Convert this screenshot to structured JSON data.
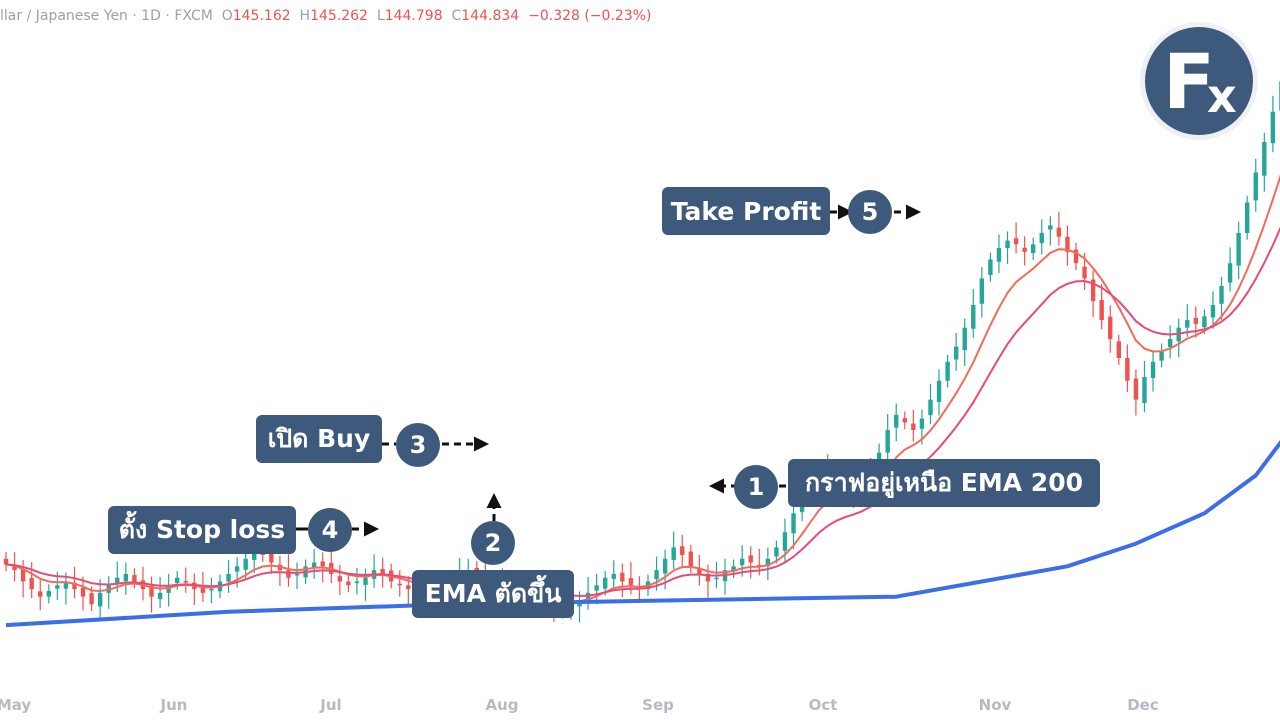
{
  "header": {
    "symbol": "llar / Japanese Yen · 1D · FXCM",
    "o_key": "O",
    "o_val": "145.162",
    "h_key": "H",
    "h_val": "145.262",
    "l_key": "L",
    "l_val": "144.798",
    "c_key": "C",
    "c_val": "144.834",
    "change": "−0.328 (−0.23%)"
  },
  "logo": {
    "letter_f": "F",
    "letter_x": "x"
  },
  "annotations": {
    "step1": {
      "num": "1",
      "text": "กราฟอยู่เหนือ EMA 200"
    },
    "step2": {
      "num": "2",
      "text": "EMA ตัดขึ้น"
    },
    "step3": {
      "num": "3",
      "text": "เปิด Buy"
    },
    "step4": {
      "num": "4",
      "text": "ตั้ง Stop loss"
    },
    "step5": {
      "num": "5",
      "text": "Take Profit"
    }
  },
  "colors": {
    "up": "#26a69a",
    "down": "#ef5350",
    "ema_fast": "#f26b5b",
    "ema_slow": "#e84b7a",
    "ema_200": "#3b6ee8",
    "annotation": "#3d5a7c"
  },
  "chart_data": {
    "type": "candlestick",
    "x_ticks": [
      "May",
      "Jun",
      "Jul",
      "Aug",
      "Sep",
      "Oct",
      "Nov",
      "Dec"
    ],
    "ylim": [
      138,
      152
    ],
    "series": [
      {
        "name": "",
        "kind": "candles",
        "close": [
          141.05,
          140.9,
          140.6,
          140.4,
          140.2,
          140.35,
          140.5,
          140.6,
          140.4,
          140.2,
          140.0,
          140.3,
          140.5,
          140.7,
          140.8,
          140.6,
          140.4,
          140.2,
          140.3,
          140.5,
          140.7,
          140.6,
          140.4,
          140.3,
          140.4,
          140.6,
          140.8,
          141.0,
          141.2,
          141.4,
          141.3,
          141.1,
          140.9,
          140.7,
          140.8,
          141.0,
          141.1,
          141.0,
          140.8,
          140.6,
          140.5,
          140.6,
          140.7,
          140.9,
          140.8,
          140.6,
          140.5,
          140.4,
          140.3,
          140.2,
          140.3,
          140.4,
          140.6,
          140.8,
          140.9,
          140.8,
          140.6,
          140.5,
          140.4,
          140.3,
          140.2,
          140.1,
          140.2,
          140.0,
          139.9,
          139.8,
          140.0,
          140.1,
          140.3,
          140.5,
          140.7,
          140.8,
          140.6,
          140.5,
          140.4,
          140.6,
          140.9,
          141.2,
          141.5,
          141.3,
          141.0,
          140.8,
          140.6,
          140.7,
          140.9,
          141.0,
          141.2,
          141.1,
          141.0,
          141.2,
          141.5,
          141.9,
          142.4,
          142.9,
          143.3,
          143.6,
          143.4,
          143.2,
          143.0,
          142.9,
          143.1,
          143.5,
          144.0,
          144.6,
          145.0,
          144.8,
          144.6,
          144.9,
          145.4,
          145.9,
          146.4,
          146.8,
          147.3,
          147.9,
          148.6,
          149.1,
          149.4,
          149.6,
          149.5,
          149.3,
          149.5,
          149.8,
          150.0,
          149.7,
          149.3,
          149.0,
          148.6,
          148.0,
          147.5,
          147.0,
          146.5,
          145.9,
          145.4,
          146.0,
          146.4,
          146.7,
          147.0,
          147.3,
          147.5,
          147.4,
          147.6,
          147.9,
          148.4,
          149.0,
          149.8,
          150.6,
          151.4,
          152.2,
          153.0,
          153.8
        ],
        "note": "daily closes as read from the candles; opens/highs/lows derived from adjacent closes"
      },
      {
        "name": "",
        "kind": "line",
        "label_color_key": "ema_fast"
      },
      {
        "name": "",
        "kind": "line",
        "label_color_key": "ema_slow"
      },
      {
        "name": "",
        "kind": "line",
        "label_color_key": "ema_200",
        "values": [
          139.45,
          139.8,
          140.0,
          140.1,
          140.2,
          140.6,
          141.0,
          141.6,
          142.4,
          143.4,
          144.6,
          145.8,
          147.2,
          148.6
        ],
        "x_index": [
          0,
          26,
          52,
          78,
          104,
          114,
          124,
          132,
          140,
          146,
          150,
          154,
          158,
          162
        ]
      }
    ]
  }
}
